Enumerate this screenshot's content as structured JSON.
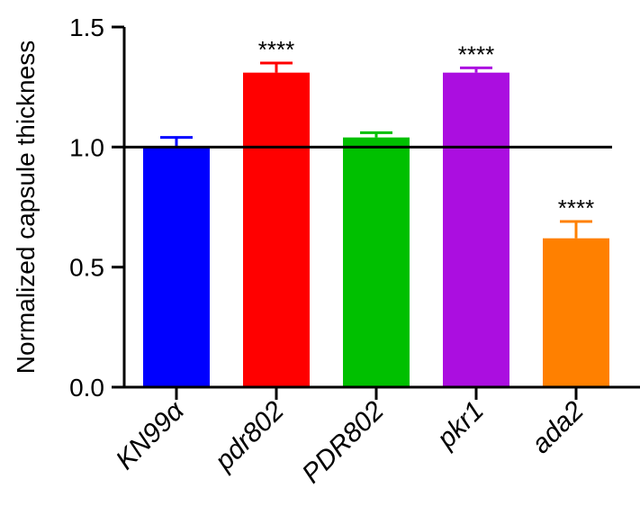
{
  "chart_data": {
    "type": "bar",
    "title": "",
    "xlabel": "",
    "ylabel": "Normalized capsule thickness",
    "ylim": [
      0,
      1.5
    ],
    "yticks": [
      "0.0",
      "0.5",
      "1.0",
      "1.5"
    ],
    "reference_line": 1.0,
    "grid": false,
    "categories": [
      {
        "label": "KN99α",
        "value": 1.0,
        "error": 0.04,
        "color": "#0000ff",
        "significance": ""
      },
      {
        "label": "pdr802",
        "value": 1.31,
        "error": 0.04,
        "color": "#ff0000",
        "significance": "****"
      },
      {
        "label": "PDR802",
        "value": 1.04,
        "error": 0.02,
        "color": "#00c000",
        "significance": ""
      },
      {
        "label": "pkr1",
        "value": 1.31,
        "error": 0.02,
        "color": "#ab0ee0",
        "significance": "****"
      },
      {
        "label": "ada2",
        "value": 0.62,
        "error": 0.07,
        "color": "#ff8000",
        "significance": "****"
      }
    ]
  }
}
